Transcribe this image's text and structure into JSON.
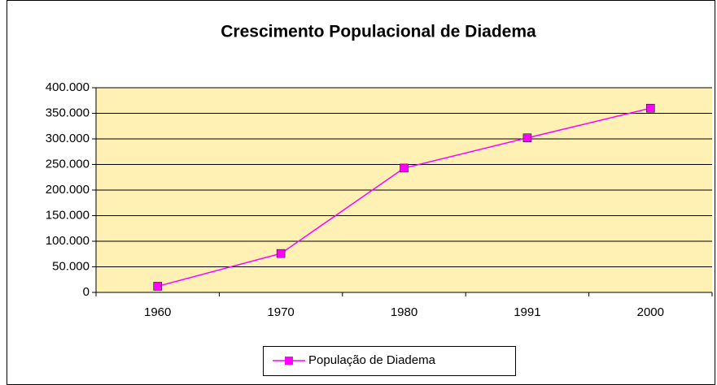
{
  "chart_data": {
    "type": "line",
    "title": "Crescimento Populacional de Diadema",
    "categories": [
      "1960",
      "1970",
      "1980",
      "1991",
      "2000"
    ],
    "series": [
      {
        "name": "População de Diadema",
        "color": "#ff00ff",
        "values": [
          12000,
          76000,
          243000,
          302000,
          360000
        ]
      }
    ],
    "ylim": [
      0,
      400000
    ],
    "yticks": [
      0,
      {
        "value": 50000,
        "label": "50.000"
      },
      {
        "value": 100000,
        "label": "100.000"
      },
      {
        "value": 150000,
        "label": "150.000"
      },
      {
        "value": 200000,
        "label": "200.000"
      },
      {
        "value": 250000,
        "label": "250.000"
      },
      {
        "value": 300000,
        "label": "300.000"
      },
      {
        "value": 350000,
        "label": "350.000"
      },
      {
        "value": 400000,
        "label": "400.000"
      }
    ],
    "grid": true,
    "plot_background": "#fff0b4",
    "legend": "bottom"
  }
}
